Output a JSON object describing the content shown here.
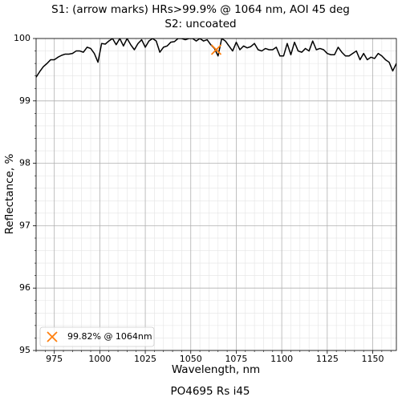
{
  "chart_data": {
    "type": "line",
    "title": "S1: (arrow marks) HRs>99.9% @ 1064 nm, AOI 45 deg",
    "subtitle": "S2: uncoated",
    "x_label": "Wavelength, nm",
    "y_label": "Reflectance, %",
    "footer": "PO4695 Rs i45",
    "xlim": [
      965,
      1163
    ],
    "ylim": [
      95,
      100
    ],
    "xticks": [
      975,
      1000,
      1025,
      1050,
      1075,
      1100,
      1125,
      1150
    ],
    "yticks": [
      95,
      96,
      97,
      98,
      99,
      100
    ],
    "xminorticks": [
      965,
      970,
      980,
      985,
      990,
      995,
      1005,
      1010,
      1015,
      1020,
      1030,
      1035,
      1040,
      1045,
      1055,
      1060,
      1065,
      1070,
      1080,
      1085,
      1090,
      1095,
      1105,
      1110,
      1115,
      1120,
      1130,
      1135,
      1140,
      1145,
      1155,
      1160
    ],
    "yminorticks": [
      95.2,
      95.4,
      95.6,
      95.8,
      96.2,
      96.4,
      96.6,
      96.8,
      97.2,
      97.4,
      97.6,
      97.8,
      98.2,
      98.4,
      98.6,
      98.8,
      99.2,
      99.4,
      99.6,
      99.8
    ],
    "grid": true,
    "legend": "lower left",
    "series": [
      {
        "color": "#000000",
        "x": [
          965,
          967,
          969,
          971,
          973,
          975,
          977,
          979,
          981,
          983,
          985,
          987,
          989,
          991,
          993,
          995,
          997,
          999,
          1001,
          1003,
          1005,
          1007,
          1009,
          1011,
          1013,
          1015,
          1017,
          1019,
          1021,
          1023,
          1025,
          1027,
          1029,
          1031,
          1033,
          1035,
          1037,
          1039,
          1041,
          1043,
          1045,
          1047,
          1049,
          1051,
          1053,
          1055,
          1057,
          1059,
          1061,
          1063,
          1065,
          1067,
          1069,
          1071,
          1073,
          1075,
          1077,
          1079,
          1081,
          1083,
          1085,
          1087,
          1089,
          1091,
          1093,
          1095,
          1097,
          1099,
          1101,
          1103,
          1105,
          1107,
          1109,
          1111,
          1113,
          1115,
          1117,
          1119,
          1121,
          1123,
          1125,
          1127,
          1129,
          1131,
          1133,
          1135,
          1137,
          1139,
          1141,
          1143,
          1145,
          1147,
          1149,
          1151,
          1153,
          1155,
          1157,
          1159,
          1161,
          1163
        ],
        "values": [
          99.38,
          99.47,
          99.55,
          99.6,
          99.66,
          99.66,
          99.7,
          99.73,
          99.75,
          99.75,
          99.76,
          99.8,
          99.8,
          99.78,
          99.86,
          99.84,
          99.76,
          99.62,
          99.92,
          99.91,
          99.96,
          100.0,
          99.9,
          100.0,
          99.88,
          100.0,
          99.9,
          99.82,
          99.92,
          99.98,
          99.86,
          99.96,
          100.0,
          99.96,
          99.78,
          99.86,
          99.88,
          99.94,
          99.95,
          100.0,
          100.0,
          99.98,
          100.0,
          100.0,
          99.96,
          100.0,
          99.96,
          99.98,
          99.9,
          99.84,
          99.72,
          100.0,
          99.96,
          99.88,
          99.8,
          99.94,
          99.82,
          99.88,
          99.85,
          99.87,
          99.92,
          99.82,
          99.8,
          99.84,
          99.82,
          99.82,
          99.86,
          99.72,
          99.72,
          99.92,
          99.74,
          99.94,
          99.8,
          99.78,
          99.84,
          99.8,
          99.96,
          99.82,
          99.84,
          99.82,
          99.76,
          99.74,
          99.74,
          99.86,
          99.78,
          99.72,
          99.72,
          99.76,
          99.8,
          99.66,
          99.76,
          99.66,
          99.7,
          99.68,
          99.76,
          99.72,
          99.66,
          99.62,
          99.48,
          99.6
        ]
      },
      {
        "type": "scatter",
        "marker": "x",
        "name": "99.82% @ 1064nm",
        "color": "#ff7f0e",
        "x": [
          1064
        ],
        "values": [
          99.82
        ]
      }
    ]
  }
}
